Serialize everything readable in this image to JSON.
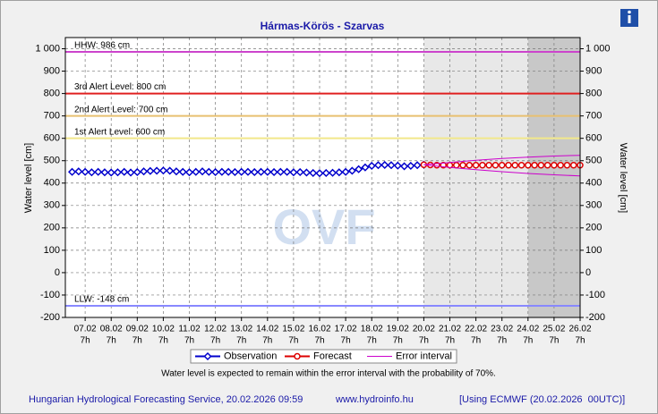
{
  "chart_data": {
    "type": "line",
    "title": "Hármas-Körös - Szarvas",
    "y_label": "Water level [cm]",
    "y2_label": "Water level [cm]",
    "watermark": "OVF",
    "note": "Water level is expected to remain within the error interval with the probability of 70%.",
    "footer": [
      "Hungarian Hydrological Forecasting Service, 20.02.2026 09:59",
      "www.hydroinfo.hu",
      "[Using ECMWF (20.02.2026  00UTC)]"
    ],
    "xlim": [
      6.53,
      26.29
    ],
    "ylim": [
      -200,
      1050
    ],
    "y2lim": [
      -200,
      1050
    ],
    "grid": true,
    "yticks": [
      -200,
      -100,
      0,
      100,
      200,
      300,
      400,
      500,
      600,
      700,
      800,
      900,
      {
        "value": 1000,
        "label": "1 000"
      }
    ],
    "y2ticks": [
      -200,
      -100,
      0,
      100,
      200,
      300,
      400,
      500,
      600,
      700,
      800,
      900,
      {
        "value": 1000,
        "label": "1 000"
      }
    ],
    "xticks": [
      {
        "value": 7.29,
        "label": "07.02"
      },
      {
        "value": 8.29,
        "label": "08.02"
      },
      {
        "value": 9.29,
        "label": "09.02"
      },
      {
        "value": 10.29,
        "label": "10.02"
      },
      {
        "value": 11.29,
        "label": "11.02"
      },
      {
        "value": 12.29,
        "label": "12.02"
      },
      {
        "value": 13.29,
        "label": "13.02"
      },
      {
        "value": 14.29,
        "label": "14.02"
      },
      {
        "value": 15.29,
        "label": "15.02"
      },
      {
        "value": 16.29,
        "label": "16.02"
      },
      {
        "value": 17.29,
        "label": "17.02"
      },
      {
        "value": 18.29,
        "label": "18.02"
      },
      {
        "value": 19.29,
        "label": "19.02"
      },
      {
        "value": 20.29,
        "label": "20.02"
      },
      {
        "value": 21.29,
        "label": "21.02"
      },
      {
        "value": 22.29,
        "label": "22.02"
      },
      {
        "value": 23.29,
        "label": "23.02"
      },
      {
        "value": 24.29,
        "label": "24.02"
      },
      {
        "value": 25.29,
        "label": "25.02"
      },
      {
        "value": 26.29,
        "label": "26.02"
      }
    ],
    "xtick_hours": [
      "7h",
      "7h",
      "7h",
      "7h",
      "7h",
      "7h",
      "7h",
      "7h",
      "7h",
      "7h",
      "7h",
      "7h",
      "7h",
      "7h",
      "7h",
      "7h",
      "7h",
      "7h",
      "7h",
      "7h"
    ],
    "shaded_regions": [
      {
        "from": 20.29,
        "to": 24.29,
        "color": "#e8e8e8"
      },
      {
        "from": 24.29,
        "to": 26.29,
        "color": "#c8c8c8"
      }
    ],
    "reference_lines": [
      {
        "label": "HHW: 986 cm",
        "value": 986,
        "color": "#cc44cc"
      },
      {
        "label": "3rd Alert Level: 800 cm",
        "value": 800,
        "color": "#e02020"
      },
      {
        "label": "2nd Alert Level: 700 cm",
        "value": 700,
        "color": "#e8c070"
      },
      {
        "label": "1st Alert Level: 600 cm",
        "value": 600,
        "color": "#f2e88a"
      },
      {
        "label": "LLW: -148 cm",
        "value": -148,
        "color": "#8888ff"
      }
    ],
    "series": [
      {
        "name": "Observation",
        "color": "#0000cc",
        "marker": "diamond",
        "x": [
          6.79,
          7.04,
          7.29,
          7.54,
          7.79,
          8.04,
          8.29,
          8.54,
          8.79,
          9.04,
          9.29,
          9.54,
          9.79,
          10.04,
          10.29,
          10.54,
          10.79,
          11.04,
          11.29,
          11.54,
          11.79,
          12.04,
          12.29,
          12.54,
          12.79,
          13.04,
          13.29,
          13.54,
          13.79,
          14.04,
          14.29,
          14.54,
          14.79,
          15.04,
          15.29,
          15.54,
          15.79,
          16.04,
          16.29,
          16.54,
          16.79,
          17.04,
          17.29,
          17.54,
          17.79,
          18.04,
          18.29,
          18.54,
          18.79,
          19.04,
          19.29,
          19.54,
          19.79,
          20.04,
          20.29
        ],
        "values": [
          450,
          452,
          450,
          448,
          450,
          448,
          447,
          448,
          450,
          447,
          449,
          452,
          454,
          455,
          456,
          455,
          452,
          450,
          448,
          450,
          452,
          450,
          449,
          450,
          450,
          449,
          450,
          450,
          449,
          450,
          450,
          449,
          450,
          450,
          448,
          449,
          447,
          445,
          444,
          445,
          446,
          448,
          450,
          455,
          462,
          470,
          477,
          480,
          481,
          480,
          478,
          475,
          477,
          480,
          482
        ]
      },
      {
        "name": "Forecast",
        "color": "#dd0000",
        "marker": "circle",
        "x": [
          20.29,
          20.54,
          20.79,
          21.04,
          21.29,
          21.54,
          21.79,
          22.04,
          22.29,
          22.54,
          22.79,
          23.04,
          23.29,
          23.54,
          23.79,
          24.04,
          24.29,
          24.54,
          24.79,
          25.04,
          25.29,
          25.54,
          25.79,
          26.04,
          26.29
        ],
        "values": [
          482,
          481,
          480,
          480,
          480,
          480,
          480,
          480,
          480,
          480,
          480,
          480,
          480,
          480,
          480,
          480,
          480,
          480,
          480,
          480,
          480,
          480,
          480,
          480,
          480
        ]
      },
      {
        "name": "Error interval",
        "color": "#cc00cc",
        "x": [
          20.29,
          21.29,
          22.29,
          23.29,
          24.29,
          25.29,
          26.29
        ],
        "values": [
          482,
          492,
          502,
          510,
          516,
          521,
          524
        ],
        "lower": [
          482,
          470,
          460,
          451,
          443,
          437,
          432
        ]
      }
    ]
  }
}
